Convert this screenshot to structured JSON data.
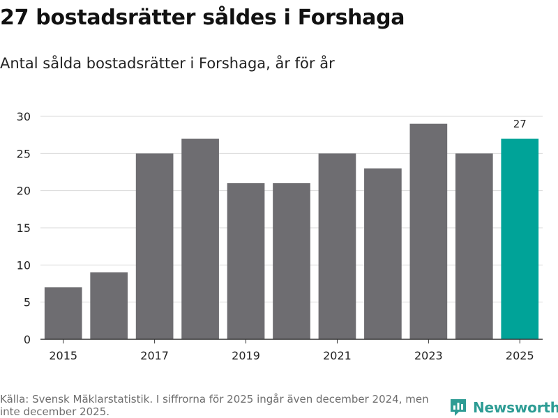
{
  "header": {
    "title": "27 bostadsrätter såldes i Forshaga",
    "subtitle": "Antal sålda bostadsrätter i Forshaga, år för år"
  },
  "footer": {
    "source": "Källa: Svensk Mäklarstatistik. I siffrorna för 2025 ingår även december 2024, men inte december 2025.",
    "brand": "Newsworthy"
  },
  "colors": {
    "bar": "#6e6d71",
    "highlight": "#00a398",
    "grid": "#d9d9d9",
    "axis": "#333333",
    "brand": "#2d9c94"
  },
  "icons": {
    "logo": "newsworthy-logo-icon"
  },
  "chart_data": {
    "type": "bar",
    "title": "Antal sålda bostadsrätter i Forshaga, år för år",
    "xlabel": "",
    "ylabel": "",
    "categories": [
      "2015",
      "2016",
      "2017",
      "2018",
      "2019",
      "2020",
      "2021",
      "2022",
      "2023",
      "2024",
      "2025"
    ],
    "values": [
      7,
      9,
      25,
      27,
      21,
      21,
      25,
      23,
      29,
      25,
      27
    ],
    "ylim": [
      0,
      30
    ],
    "yticks": [
      0,
      5,
      10,
      15,
      20,
      25,
      30
    ],
    "xtick_labels": [
      "2015",
      "2017",
      "2019",
      "2021",
      "2023",
      "2025"
    ],
    "highlight_category": "2025",
    "data_labels": [
      {
        "category": "2025",
        "text": "27"
      }
    ],
    "grid": true
  }
}
